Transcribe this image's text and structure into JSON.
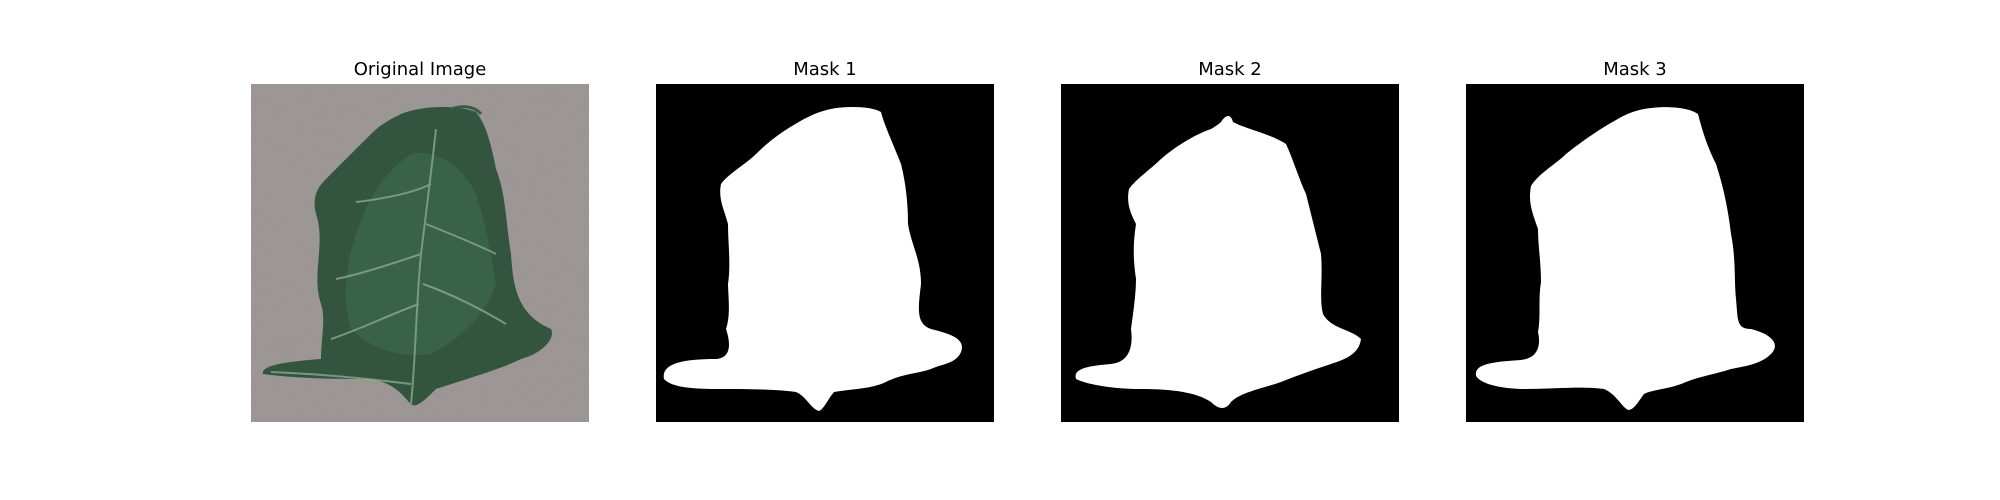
{
  "figure": {
    "panels": [
      {
        "title": "Original Image",
        "kind": "photo"
      },
      {
        "title": "Mask 1",
        "kind": "mask"
      },
      {
        "title": "Mask 2",
        "kind": "mask"
      },
      {
        "title": "Mask 3",
        "kind": "mask"
      }
    ]
  },
  "colors": {
    "background_photo": "#9e9897",
    "leaf_dark": "#2f4f3e",
    "leaf_mid": "#3f6b52",
    "leaf_vein": "#8fae8f",
    "mask_bg": "#000000",
    "mask_fg": "#ffffff"
  }
}
